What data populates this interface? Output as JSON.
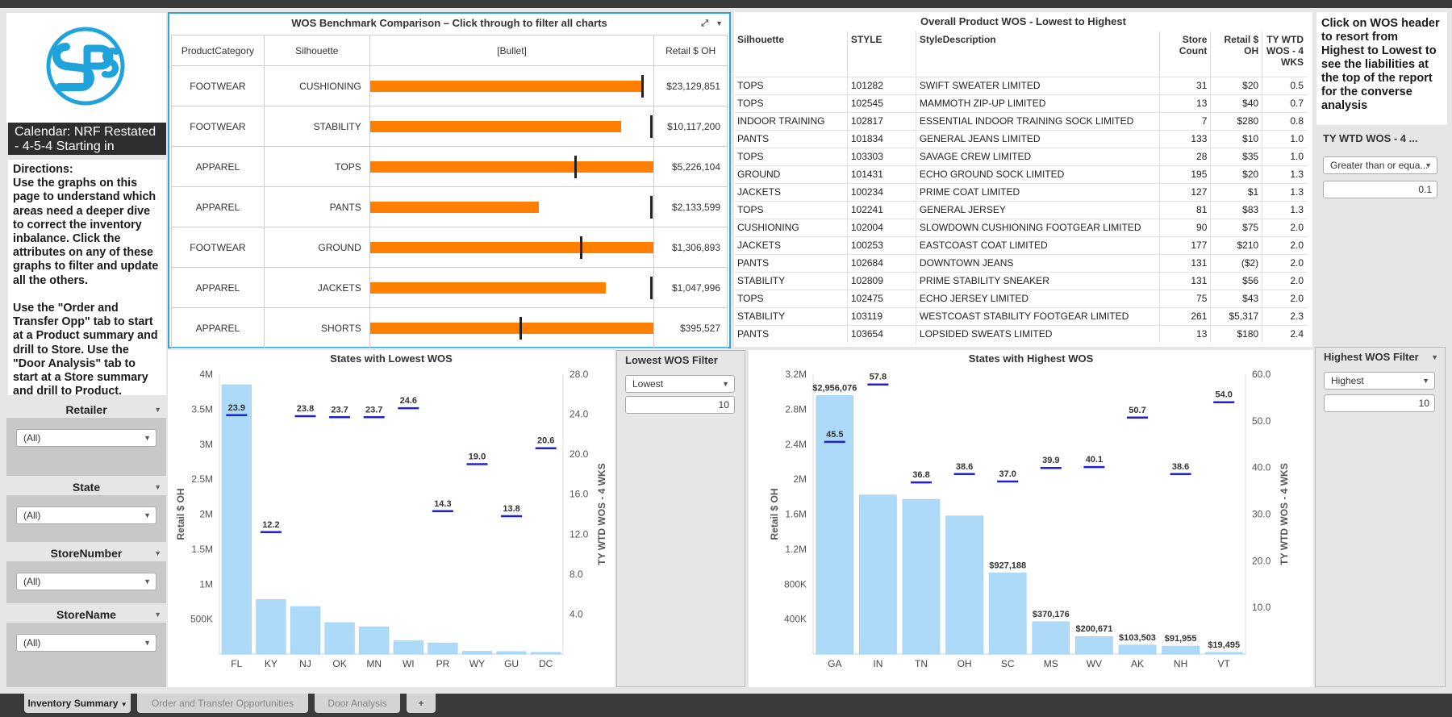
{
  "calendar": "Calendar: NRF Restated - 4-5-4 Starting in",
  "directions": "Directions:\nUse the graphs on this page to understand which areas need a deeper dive to correct the inventory inbalance. Click the attributes on any of these graphs to filter and update all the others.\n\nUse the \"Order and Transfer Opp\" tab to start at a Product summary and drill to Store. Use the \"Door Analysis\" tab to start at a Store summary and drill to Product.",
  "filters": [
    {
      "label": "Retailer",
      "value": "(All)"
    },
    {
      "label": "State",
      "value": "(All)"
    },
    {
      "label": "StoreNumber",
      "value": "(All)"
    },
    {
      "label": "StoreName",
      "value": "(All)"
    }
  ],
  "bench": {
    "title": "WOS Benchmark Comparison – Click through to filter all charts",
    "headers": [
      "ProductCategory",
      "Silhouette",
      "[Bullet]",
      "Retail $ OH"
    ],
    "rows": [
      {
        "cat": "FOOTWEAR",
        "sil": "CUSHIONING",
        "bar": 0.96,
        "tick": 0.965,
        "retail": "$23,129,851"
      },
      {
        "cat": "FOOTWEAR",
        "sil": "STABILITY",
        "bar": 0.885,
        "tick": 0.995,
        "retail": "$10,117,200"
      },
      {
        "cat": "APPAREL",
        "sil": "TOPS",
        "bar": 1.0,
        "tick": 0.73,
        "retail": "$5,226,104"
      },
      {
        "cat": "APPAREL",
        "sil": "PANTS",
        "bar": 0.595,
        "tick": 0.995,
        "retail": "$2,133,599"
      },
      {
        "cat": "FOOTWEAR",
        "sil": "GROUND",
        "bar": 1.0,
        "tick": 0.75,
        "retail": "$1,306,893"
      },
      {
        "cat": "APPAREL",
        "sil": "JACKETS",
        "bar": 0.83,
        "tick": 0.995,
        "retail": "$1,047,996"
      },
      {
        "cat": "APPAREL",
        "sil": "SHORTS",
        "bar": 1.0,
        "tick": 0.535,
        "retail": "$395,527"
      }
    ]
  },
  "overall": {
    "title": "Overall Product WOS - Lowest to Highest",
    "headers": [
      "Silhouette",
      "STYLE",
      "StyleDescription",
      "Store Count",
      "Retail $ OH",
      "TY WTD WOS - 4 WKS"
    ],
    "rows": [
      [
        "TOPS",
        "101282",
        "SWIFT SWEATER LIMITED",
        "31",
        "$20",
        "0.5"
      ],
      [
        "TOPS",
        "102545",
        "MAMMOTH ZIP-UP LIMITED",
        "13",
        "$40",
        "0.7"
      ],
      [
        "INDOOR TRAINING",
        "102817",
        "ESSENTIAL INDOOR TRAINING SOCK LIMITED",
        "7",
        "$280",
        "0.8"
      ],
      [
        "PANTS",
        "101834",
        "GENERAL JEANS LIMITED",
        "133",
        "$10",
        "1.0"
      ],
      [
        "TOPS",
        "103303",
        "SAVAGE CREW LIMITED",
        "28",
        "$35",
        "1.0"
      ],
      [
        "GROUND",
        "101431",
        "ECHO GROUND SOCK LIMITED",
        "195",
        "$20",
        "1.3"
      ],
      [
        "JACKETS",
        "100234",
        "PRIME COAT LIMITED",
        "127",
        "$1",
        "1.3"
      ],
      [
        "TOPS",
        "102241",
        "GENERAL JERSEY",
        "81",
        "$83",
        "1.3"
      ],
      [
        "CUSHIONING",
        "102004",
        "SLOWDOWN CUSHIONING FOOTGEAR LIMITED",
        "90",
        "$75",
        "2.0"
      ],
      [
        "JACKETS",
        "100253",
        "EASTCOAST COAT LIMITED",
        "177",
        "$210",
        "2.0"
      ],
      [
        "PANTS",
        "102684",
        "DOWNTOWN JEANS",
        "131",
        "($2)",
        "2.0"
      ],
      [
        "STABILITY",
        "102809",
        "PRIME STABILITY SNEAKER",
        "131",
        "$56",
        "2.0"
      ],
      [
        "TOPS",
        "102475",
        "ECHO JERSEY LIMITED",
        "75",
        "$43",
        "2.0"
      ],
      [
        "STABILITY",
        "103119",
        "WESTCOAST STABILITY FOOTGEAR LIMITED",
        "261",
        "$5,317",
        "2.3"
      ],
      [
        "PANTS",
        "103654",
        "LOPSIDED SWEATS LIMITED",
        "13",
        "$180",
        "2.4"
      ]
    ]
  },
  "click_note": "Click on WOS header to resort from Highest to Lowest to see the liabilities at the top of the report for the converse analysis",
  "ty_filter": {
    "label": "TY WTD WOS - 4 ...",
    "op": "Greater than or equa...",
    "value": "0.1"
  },
  "low_filter": {
    "label": "Lowest WOS Filter",
    "op": "Lowest",
    "value": "10"
  },
  "high_filter": {
    "label": "Highest WOS Filter",
    "op": "Highest",
    "value": "10"
  },
  "chart_data": [
    {
      "type": "bar",
      "title": "States with Lowest WOS",
      "categories": [
        "FL",
        "KY",
        "NJ",
        "OK",
        "MN",
        "WI",
        "PR",
        "WY",
        "GU",
        "DC"
      ],
      "ylabel": "Retail $ OH",
      "y2label": "TY WTD WOS - 4 WKS",
      "ylim": [
        0,
        4000000
      ],
      "y2lim": [
        0,
        28
      ],
      "yticks": [
        "500K",
        "1M",
        "1.5M",
        "2M",
        "2.5M",
        "3M",
        "3.5M",
        "4M"
      ],
      "y2ticks": [
        "4.0",
        "8.0",
        "12.0",
        "16.0",
        "20.0",
        "24.0",
        "28.0"
      ],
      "series": [
        {
          "name": "Retail $ OH",
          "values": [
            3850000,
            780000,
            680000,
            450000,
            390000,
            190000,
            160000,
            40000,
            35000,
            25000
          ]
        },
        {
          "name": "TY WTD WOS - 4 WKS",
          "values": [
            23.9,
            12.2,
            23.8,
            23.7,
            23.7,
            24.6,
            14.3,
            19.0,
            13.8,
            20.6
          ],
          "labels": [
            "23.9",
            "12.2",
            "23.8",
            "23.7",
            "23.7",
            "24.6",
            "14.3",
            "19.0",
            "13.8",
            "20.6"
          ]
        }
      ]
    },
    {
      "type": "bar",
      "title": "States with Highest WOS",
      "categories": [
        "GA",
        "IN",
        "TN",
        "OH",
        "SC",
        "MS",
        "WV",
        "AK",
        "NH",
        "VT"
      ],
      "ylabel": "Retail $ OH",
      "y2label": "TY WTD WOS - 4 WKS",
      "ylim": [
        0,
        3200000
      ],
      "y2lim": [
        0,
        60
      ],
      "yticks": [
        "400K",
        "800K",
        "1.2M",
        "1.6M",
        "2M",
        "2.4M",
        "2.8M",
        "3.2M"
      ],
      "y2ticks": [
        "10.0",
        "20.0",
        "30.0",
        "40.0",
        "50.0",
        "60.0"
      ],
      "series": [
        {
          "name": "Retail $ OH",
          "values": [
            2956076,
            1820000,
            1770000,
            1580000,
            927188,
            370176,
            200671,
            103503,
            91955,
            19495
          ],
          "labels": [
            "$2,956,076",
            "",
            "",
            "",
            "$927,188",
            "$370,176",
            "$200,671",
            "$103,503",
            "$91,955",
            "$19,495"
          ]
        },
        {
          "name": "TY WTD WOS - 4 WKS",
          "values": [
            45.5,
            57.8,
            36.8,
            38.6,
            37.0,
            39.9,
            40.1,
            50.7,
            38.6,
            54.0
          ],
          "labels": [
            "45.5",
            "57.8",
            "36.8",
            "38.6",
            "37.0",
            "39.9",
            "40.1",
            "50.7",
            "38.6",
            "54.0"
          ]
        }
      ]
    }
  ],
  "tabs": [
    {
      "label": "Inventory Summary",
      "active": true
    },
    {
      "label": "Order and Transfer Opportunities",
      "active": false
    },
    {
      "label": "Door Analysis",
      "active": false
    }
  ],
  "colors": {
    "accent": "#2aa7d7",
    "bar_orange": "#ff8000",
    "bar_blue": "#acdaf8",
    "wos_marker": "#1f1fd6"
  }
}
